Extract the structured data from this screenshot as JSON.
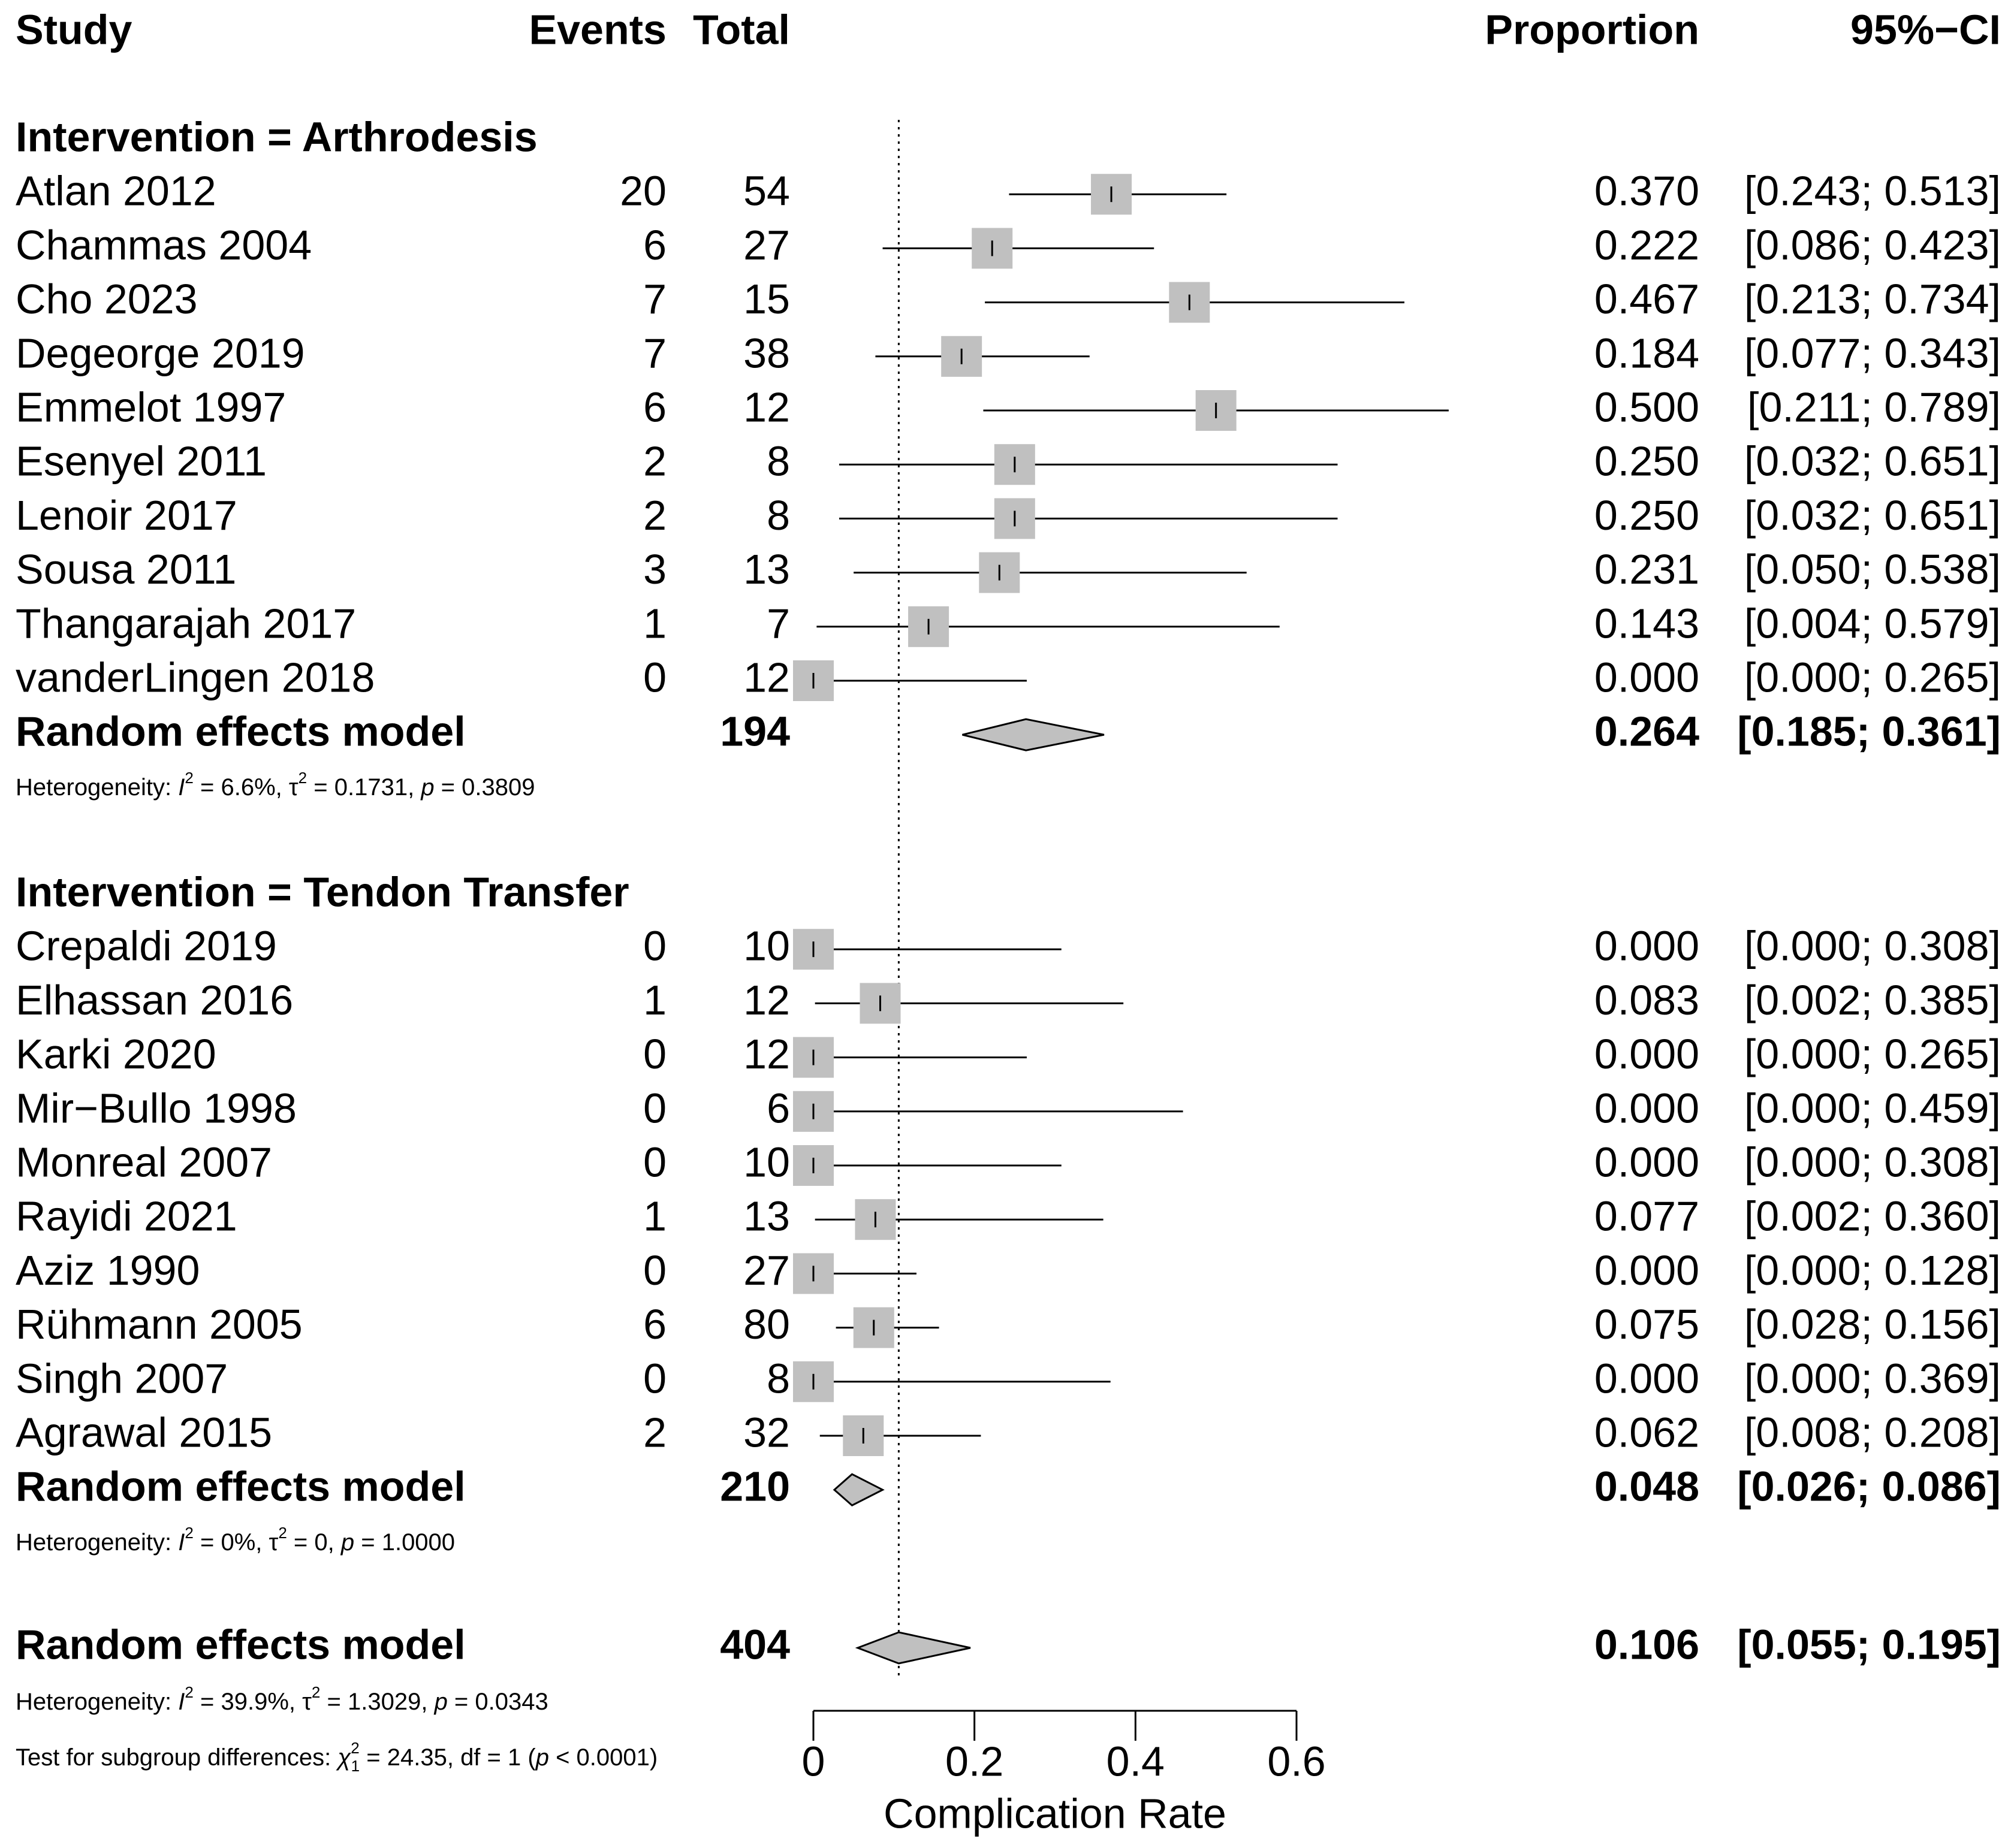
{
  "chart_data": {
    "type": "forest",
    "columns": {
      "study": "Study",
      "events": "Events",
      "total": "Total",
      "proportion": "Proportion",
      "ci": "95%−CI"
    },
    "xlabel": "Complication Rate",
    "xlim": [
      0,
      0.6
    ],
    "xticks": [
      0,
      0.2,
      0.4,
      0.6
    ],
    "xtick_labels": [
      "0",
      "0.2",
      "0.4",
      "0.6"
    ],
    "reference_line": 0.106,
    "subgroups": [
      {
        "label": "Intervention = Arthrodesis",
        "studies": [
          {
            "study": "Atlan 2012",
            "events": "20",
            "total": "54",
            "proportion": 0.37,
            "lower": 0.243,
            "upper": 0.513,
            "prop_text": "0.370",
            "ci_text": "[0.243; 0.513]"
          },
          {
            "study": "Chammas 2004",
            "events": "6",
            "total": "27",
            "proportion": 0.222,
            "lower": 0.086,
            "upper": 0.423,
            "prop_text": "0.222",
            "ci_text": "[0.086; 0.423]"
          },
          {
            "study": "Cho 2023",
            "events": "7",
            "total": "15",
            "proportion": 0.467,
            "lower": 0.213,
            "upper": 0.734,
            "prop_text": "0.467",
            "ci_text": "[0.213; 0.734]"
          },
          {
            "study": "Degeorge 2019",
            "events": "7",
            "total": "38",
            "proportion": 0.184,
            "lower": 0.077,
            "upper": 0.343,
            "prop_text": "0.184",
            "ci_text": "[0.077; 0.343]"
          },
          {
            "study": "Emmelot 1997",
            "events": "6",
            "total": "12",
            "proportion": 0.5,
            "lower": 0.211,
            "upper": 0.789,
            "prop_text": "0.500",
            "ci_text": "[0.211; 0.789]"
          },
          {
            "study": "Esenyel 2011",
            "events": "2",
            "total": "8",
            "proportion": 0.25,
            "lower": 0.032,
            "upper": 0.651,
            "prop_text": "0.250",
            "ci_text": "[0.032; 0.651]"
          },
          {
            "study": "Lenoir 2017",
            "events": "2",
            "total": "8",
            "proportion": 0.25,
            "lower": 0.032,
            "upper": 0.651,
            "prop_text": "0.250",
            "ci_text": "[0.032; 0.651]"
          },
          {
            "study": "Sousa 2011",
            "events": "3",
            "total": "13",
            "proportion": 0.231,
            "lower": 0.05,
            "upper": 0.538,
            "prop_text": "0.231",
            "ci_text": "[0.050; 0.538]"
          },
          {
            "study": "Thangarajah 2017",
            "events": "1",
            "total": "7",
            "proportion": 0.143,
            "lower": 0.004,
            "upper": 0.579,
            "prop_text": "0.143",
            "ci_text": "[0.004; 0.579]"
          },
          {
            "study": "vanderLingen 2018",
            "events": "0",
            "total": "12",
            "proportion": 0.0,
            "lower": 0.0,
            "upper": 0.265,
            "prop_text": "0.000",
            "ci_text": "[0.000; 0.265]"
          }
        ],
        "model": {
          "label": "Random effects model",
          "total": "194",
          "estimate": 0.264,
          "lower": 0.185,
          "upper": 0.361,
          "prop_text": "0.264",
          "ci_text": "[0.185; 0.361]"
        },
        "heterogeneity": {
          "prefix": "Heterogeneity: ",
          "I2": "6.6%",
          "tau2": "0.1731",
          "p": "0.3809"
        }
      },
      {
        "label": "Intervention = Tendon Transfer",
        "studies": [
          {
            "study": "Crepaldi 2019",
            "events": "0",
            "total": "10",
            "proportion": 0.0,
            "lower": 0.0,
            "upper": 0.308,
            "prop_text": "0.000",
            "ci_text": "[0.000; 0.308]"
          },
          {
            "study": "Elhassan 2016",
            "events": "1",
            "total": "12",
            "proportion": 0.083,
            "lower": 0.002,
            "upper": 0.385,
            "prop_text": "0.083",
            "ci_text": "[0.002; 0.385]"
          },
          {
            "study": "Karki 2020",
            "events": "0",
            "total": "12",
            "proportion": 0.0,
            "lower": 0.0,
            "upper": 0.265,
            "prop_text": "0.000",
            "ci_text": "[0.000; 0.265]"
          },
          {
            "study": "Mir−Bullo 1998",
            "events": "0",
            "total": "6",
            "proportion": 0.0,
            "lower": 0.0,
            "upper": 0.459,
            "prop_text": "0.000",
            "ci_text": "[0.000; 0.459]"
          },
          {
            "study": "Monreal 2007",
            "events": "0",
            "total": "10",
            "proportion": 0.0,
            "lower": 0.0,
            "upper": 0.308,
            "prop_text": "0.000",
            "ci_text": "[0.000; 0.308]"
          },
          {
            "study": "Rayidi 2021",
            "events": "1",
            "total": "13",
            "proportion": 0.077,
            "lower": 0.002,
            "upper": 0.36,
            "prop_text": "0.077",
            "ci_text": "[0.002; 0.360]"
          },
          {
            "study": "Aziz 1990",
            "events": "0",
            "total": "27",
            "proportion": 0.0,
            "lower": 0.0,
            "upper": 0.128,
            "prop_text": "0.000",
            "ci_text": "[0.000; 0.128]"
          },
          {
            "study": "Rühmann 2005",
            "events": "6",
            "total": "80",
            "proportion": 0.075,
            "lower": 0.028,
            "upper": 0.156,
            "prop_text": "0.075",
            "ci_text": "[0.028; 0.156]"
          },
          {
            "study": "Singh 2007",
            "events": "0",
            "total": "8",
            "proportion": 0.0,
            "lower": 0.0,
            "upper": 0.369,
            "prop_text": "0.000",
            "ci_text": "[0.000; 0.369]"
          },
          {
            "study": "Agrawal 2015",
            "events": "2",
            "total": "32",
            "proportion": 0.062,
            "lower": 0.008,
            "upper": 0.208,
            "prop_text": "0.062",
            "ci_text": "[0.008; 0.208]"
          }
        ],
        "model": {
          "label": "Random effects model",
          "total": "210",
          "estimate": 0.048,
          "lower": 0.026,
          "upper": 0.086,
          "prop_text": "0.048",
          "ci_text": "[0.026; 0.086]"
        },
        "heterogeneity": {
          "prefix": "Heterogeneity: ",
          "I2": "0%",
          "tau2": "0",
          "p": "1.0000"
        }
      }
    ],
    "overall": {
      "label": "Random effects model",
      "total": "404",
      "estimate": 0.106,
      "lower": 0.055,
      "upper": 0.195,
      "prop_text": "0.106",
      "ci_text": "[0.055; 0.195]",
      "heterogeneity": {
        "prefix": "Heterogeneity: ",
        "I2": "39.9%",
        "tau2": "1.3029",
        "p": "0.0343"
      },
      "subgroup_test": {
        "prefix": "Test for subgroup differences: ",
        "chi2": "24.35",
        "df": "df = 1",
        "p": "< 0.0001"
      }
    }
  }
}
